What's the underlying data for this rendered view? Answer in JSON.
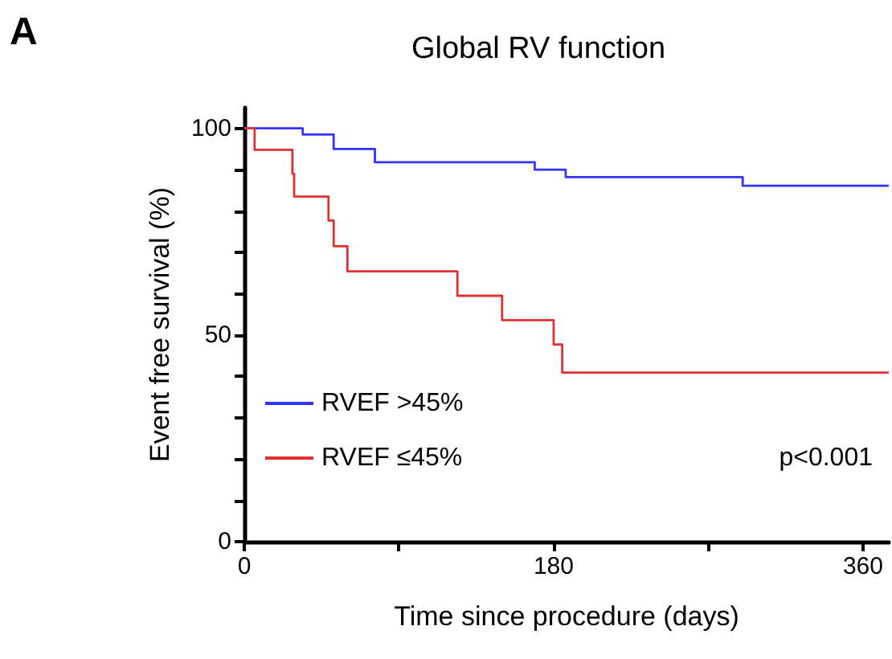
{
  "chart_data": {
    "type": "step",
    "title": "Global RV function",
    "xlabel": "Time since procedure (days)",
    "ylabel": "Event free survival (%)",
    "annotations": [
      "A",
      "p<0.001"
    ],
    "series": [
      {
        "name": "RVEF >45%",
        "color": "#3333ff",
        "x": [
          0,
          34,
          52,
          76,
          169,
          187,
          290,
          375
        ],
        "values": [
          100,
          98.5,
          95,
          91.8,
          90,
          88.2,
          86.1,
          86.1
        ]
      },
      {
        "name": "RVEF ≤45%",
        "color": "#e03030",
        "x": [
          0,
          6,
          28,
          29,
          49,
          52,
          60,
          124,
          150,
          180,
          185,
          375
        ],
        "values": [
          100,
          94.8,
          89,
          83.5,
          77.7,
          71.5,
          65.4,
          59.5,
          53.6,
          47.7,
          40.9,
          40.9
        ]
      }
    ],
    "xlim": [
      0,
      375
    ],
    "xticks": [
      0,
      {
        "value": 90,
        "label": null
      },
      180,
      {
        "value": 270,
        "label": null
      },
      360
    ],
    "ylim": [
      0,
      105
    ],
    "yticks": [
      0,
      {
        "value": 10,
        "label": null
      },
      {
        "value": 20,
        "label": null
      },
      {
        "value": 30,
        "label": null
      },
      {
        "value": 40,
        "label": null
      },
      50,
      {
        "value": 60,
        "label": null
      },
      {
        "value": 70,
        "label": null
      },
      {
        "value": 80,
        "label": null
      },
      {
        "value": 90,
        "label": null
      },
      100
    ],
    "grid": false,
    "legend": "bottom left",
    "marker": "none",
    "line_style": "solid"
  }
}
